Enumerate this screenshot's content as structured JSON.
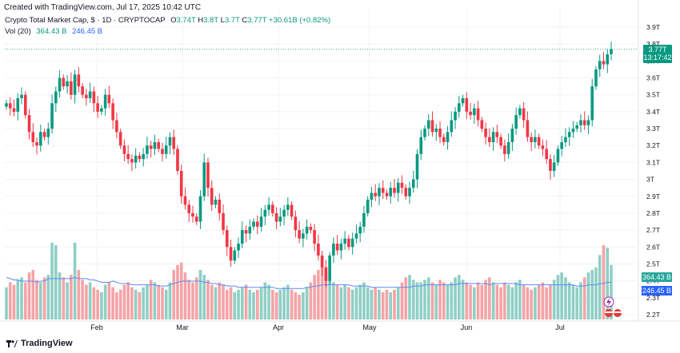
{
  "header": {
    "created_line": "Created with TradingView.com, Jul 17, 2025 10:42 UTC",
    "symbol_line": "Crypto Total Market Cap, $ · 1D · CRYPTOCAP",
    "o_label": "O",
    "o_value": "3.74T",
    "h_label": "H",
    "h_value": "3.8T",
    "l_label": "L",
    "l_value": "3.7T",
    "c_label": "C",
    "c_value": "3.77T",
    "change": "+30.61B (+0.82%)",
    "vol_label": "Vol (20)",
    "vol_value": "364.43 B",
    "vol_ma_value": "246.45 B"
  },
  "price_tag": {
    "price": "3.77T",
    "countdown": "13:17:42"
  },
  "volume_tags": {
    "volume": "364.43 B",
    "ma": "246.45 B"
  },
  "footer": {
    "brand": "TradingView"
  },
  "colors": {
    "up": "#089981",
    "down": "#f23645",
    "vol_up": "#8fcfc4",
    "vol_down": "#f5a3a6",
    "ma": "#2962ff",
    "grid": "#f0f3fa"
  },
  "chart_data": {
    "type": "candlestick",
    "y_ticks": [
      "3.9T",
      "3.8T",
      "3.7T",
      "3.6T",
      "3.5T",
      "3.4T",
      "3.3T",
      "3.2T",
      "3.1T",
      "3T",
      "2.9T",
      "2.8T",
      "2.7T",
      "2.6T",
      "2.5T",
      "2.4T",
      "2.3T",
      "2.2T"
    ],
    "x_ticks": [
      "Feb",
      "Mar",
      "Apr",
      "May",
      "Jun",
      "Jul"
    ],
    "ylim": [
      2.15,
      3.95
    ],
    "close_series": [
      3.45,
      3.42,
      3.4,
      3.48,
      3.5,
      3.38,
      3.28,
      3.22,
      3.2,
      3.28,
      3.25,
      3.3,
      3.45,
      3.52,
      3.6,
      3.55,
      3.58,
      3.5,
      3.62,
      3.55,
      3.5,
      3.48,
      3.52,
      3.45,
      3.4,
      3.42,
      3.5,
      3.45,
      3.35,
      3.28,
      3.2,
      3.15,
      3.12,
      3.1,
      3.14,
      3.12,
      3.15,
      3.2,
      3.18,
      3.22,
      3.18,
      3.15,
      3.2,
      3.25,
      3.18,
      3.05,
      2.9,
      2.85,
      2.8,
      2.78,
      2.75,
      2.9,
      3.1,
      2.95,
      2.85,
      2.88,
      2.8,
      2.7,
      2.6,
      2.52,
      2.58,
      2.62,
      2.7,
      2.68,
      2.72,
      2.75,
      2.72,
      2.78,
      2.82,
      2.85,
      2.8,
      2.75,
      2.78,
      2.82,
      2.85,
      2.78,
      2.7,
      2.65,
      2.68,
      2.72,
      2.7,
      2.62,
      2.55,
      2.48,
      2.4,
      2.55,
      2.62,
      2.58,
      2.62,
      2.65,
      2.6,
      2.65,
      2.68,
      2.72,
      2.8,
      2.88,
      2.92,
      2.9,
      2.95,
      2.92,
      2.9,
      2.95,
      2.92,
      2.98,
      2.95,
      2.9,
      2.95,
      3.0,
      3.15,
      3.25,
      3.3,
      3.35,
      3.28,
      3.3,
      3.25,
      3.22,
      3.28,
      3.35,
      3.4,
      3.45,
      3.48,
      3.4,
      3.38,
      3.42,
      3.35,
      3.3,
      3.25,
      3.22,
      3.28,
      3.25,
      3.2,
      3.15,
      3.22,
      3.3,
      3.38,
      3.42,
      3.35,
      3.25,
      3.22,
      3.25,
      3.2,
      3.18,
      3.12,
      3.05,
      3.1,
      3.18,
      3.22,
      3.25,
      3.28,
      3.3,
      3.32,
      3.35,
      3.32,
      3.35,
      3.55,
      3.65,
      3.7,
      3.68,
      3.74,
      3.77
    ],
    "volume_series": [
      26,
      30,
      28,
      32,
      34,
      30,
      38,
      40,
      32,
      30,
      34,
      36,
      62,
      60,
      38,
      34,
      30,
      36,
      62,
      40,
      32,
      28,
      30,
      26,
      24,
      22,
      28,
      30,
      26,
      22,
      24,
      28,
      30,
      26,
      24,
      22,
      26,
      28,
      32,
      30,
      28,
      26,
      24,
      30,
      40,
      44,
      46,
      38,
      32,
      30,
      34,
      40,
      36,
      32,
      28,
      26,
      30,
      28,
      24,
      26,
      22,
      24,
      26,
      28,
      24,
      22,
      24,
      26,
      30,
      28,
      24,
      22,
      24,
      26,
      28,
      24,
      22,
      20,
      22,
      26,
      30,
      36,
      40,
      44,
      38,
      32,
      30,
      28,
      26,
      28,
      26,
      24,
      26,
      28,
      30,
      26,
      24,
      26,
      24,
      22,
      24,
      22,
      24,
      26,
      30,
      34,
      36,
      32,
      30,
      30,
      32,
      34,
      30,
      28,
      32,
      30,
      28,
      30,
      34,
      36,
      32,
      30,
      28,
      26,
      30,
      28,
      32,
      34,
      30,
      28,
      26,
      30,
      28,
      26,
      30,
      32,
      28,
      26,
      24,
      26,
      28,
      30,
      26,
      28,
      32,
      36,
      38,
      34,
      30,
      28,
      26,
      30,
      34,
      38,
      40,
      42,
      52,
      60,
      58,
      44
    ],
    "ma_series": [
      34,
      33,
      32,
      32,
      31,
      31,
      31,
      31,
      30,
      31,
      31,
      33,
      33,
      33,
      33,
      33,
      33,
      33,
      34,
      33,
      33,
      33,
      32,
      32,
      31,
      30,
      30,
      30,
      31,
      30,
      29,
      29,
      29,
      28,
      28,
      28,
      28,
      28,
      28,
      28,
      27,
      27,
      27,
      28,
      29,
      30,
      31,
      31,
      31,
      31,
      31,
      31,
      30,
      30,
      29,
      29,
      28,
      28,
      27,
      27,
      27,
      26,
      26,
      26,
      26,
      26,
      26,
      26,
      26,
      26,
      26,
      25,
      25,
      25,
      25,
      25,
      25,
      25,
      25,
      26,
      26,
      27,
      27,
      28,
      28,
      28,
      28,
      28,
      28,
      28,
      28,
      27,
      27,
      27,
      27,
      27,
      26,
      26,
      26,
      26,
      26,
      26,
      26,
      26,
      26,
      26,
      26,
      27,
      27,
      27,
      28,
      28,
      28,
      28,
      28,
      28,
      28,
      28,
      28,
      29,
      29,
      29,
      29,
      29,
      29,
      29,
      29,
      28,
      29,
      29,
      29,
      29,
      29,
      29,
      29,
      28,
      28,
      28,
      28,
      28,
      28,
      28,
      28,
      28,
      28,
      28,
      28,
      28,
      28,
      28,
      27,
      27,
      27,
      28,
      28,
      28,
      29,
      29,
      30,
      30
    ]
  }
}
